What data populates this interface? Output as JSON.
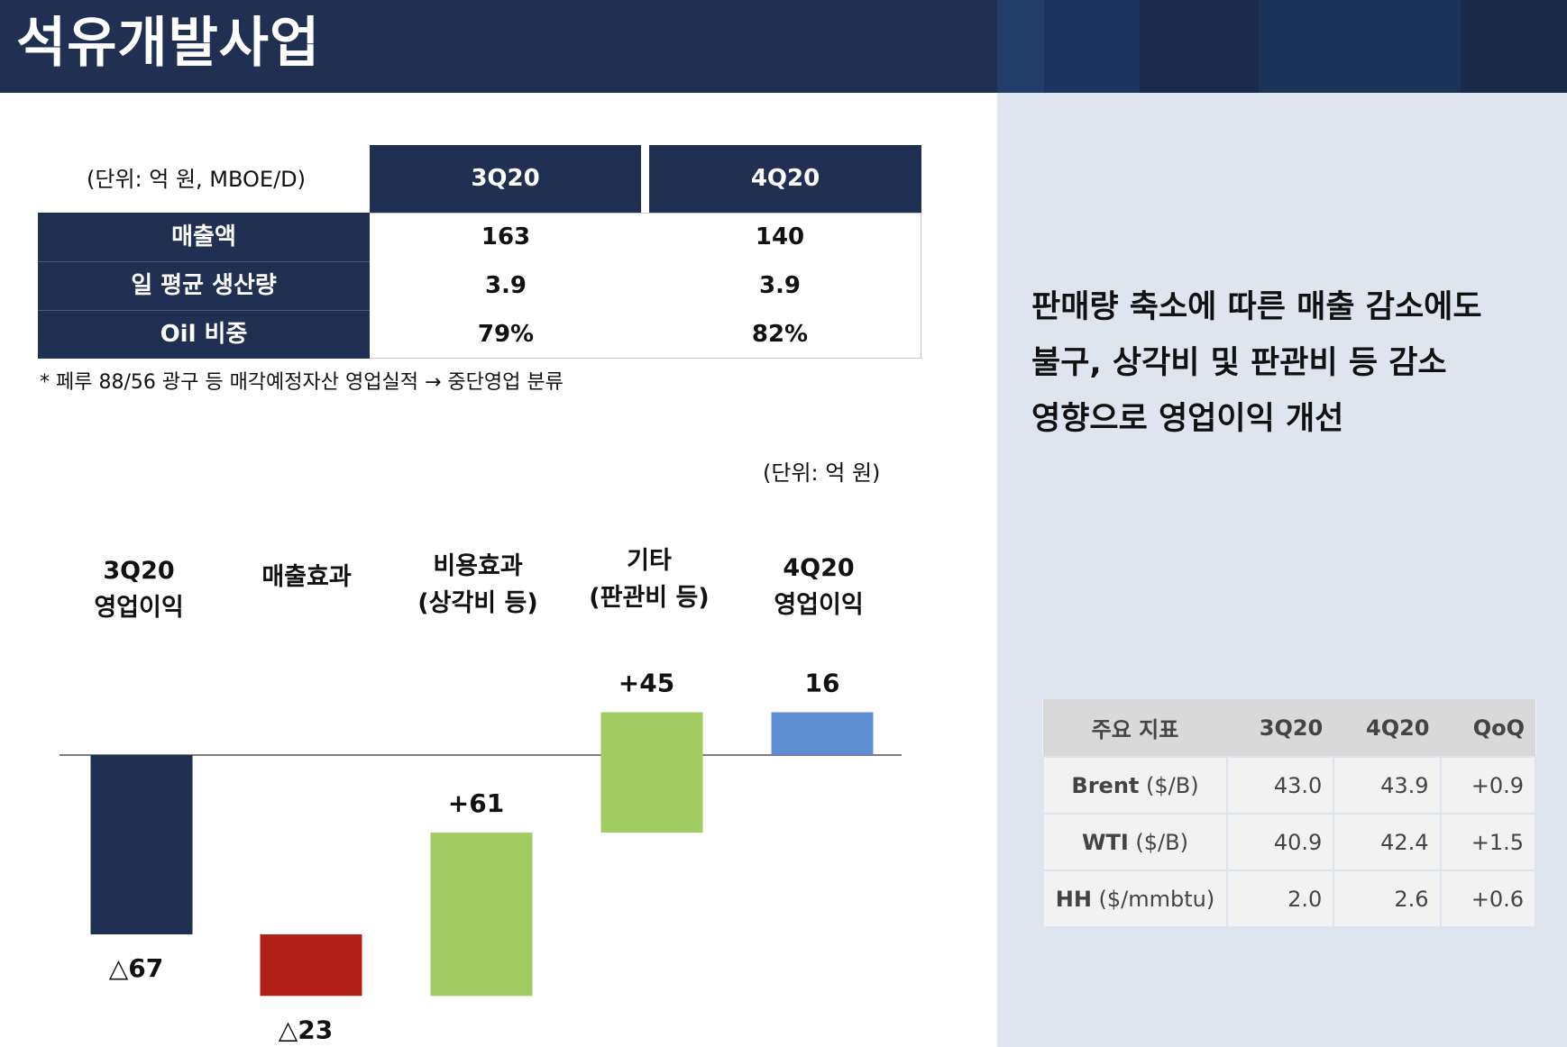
{
  "header": {
    "title": "석유개발사업"
  },
  "summary_table": {
    "unit": "(단위: 억 원, MBOE/D)",
    "columns": [
      "3Q20",
      "4Q20"
    ],
    "rows": [
      {
        "label": "매출액",
        "values": [
          "163",
          "140"
        ]
      },
      {
        "label": "일 평균 생산량",
        "values": [
          "3.9",
          "3.9"
        ]
      },
      {
        "label": "Oil 비중",
        "values": [
          "79%",
          "82%"
        ]
      }
    ],
    "footnote": "* 페루 88/56 광구 등 매각예정자산 영업실적 → 중단영업 분류"
  },
  "chart_data": {
    "type": "waterfall",
    "unit": "(단위: 억 원)",
    "categories": [
      "3Q20\n영업이익",
      "매출효과",
      "비용효과\n(상각비 등)",
      "기타\n(판관비 등)",
      "4Q20\n영업이익"
    ],
    "values": [
      -67,
      -23,
      61,
      45,
      16
    ],
    "value_labels": [
      "△67",
      "△23",
      "+61",
      "+45",
      "16"
    ],
    "kinds": [
      "total",
      "delta",
      "delta",
      "delta",
      "total"
    ],
    "colors": [
      "#1f3052",
      "#b22019",
      "#a1cc62",
      "#a1cc62",
      "#5f8fd2"
    ]
  },
  "headline": {
    "lines": [
      "판매량 축소에 따른 매출 감소에도",
      "불구, 상각비 및 판관비 등 감소",
      "영향으로 영업이익 개선"
    ]
  },
  "indicators": {
    "columns": [
      "주요 지표",
      "3Q20",
      "4Q20",
      "QoQ"
    ],
    "rows": [
      {
        "name": "Brent",
        "unit": " ($/B)",
        "q3": "43.0",
        "q4": "43.9",
        "qoq": "+0.9"
      },
      {
        "name": "WTI",
        "unit": " ($/B)",
        "q3": "40.9",
        "q4": "42.4",
        "qoq": "+1.5"
      },
      {
        "name": "HH",
        "unit": " ($/mmbtu)",
        "q3": "2.0",
        "q4": "2.6",
        "qoq": "+0.6"
      }
    ]
  }
}
